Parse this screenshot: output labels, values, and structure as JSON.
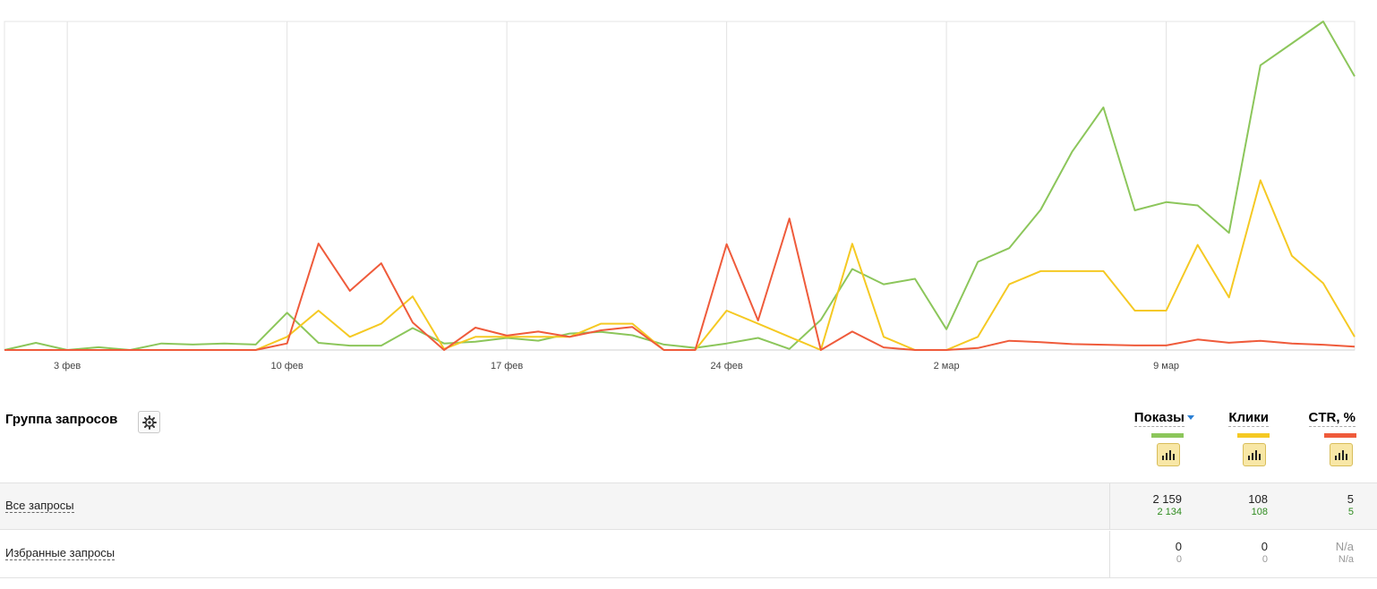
{
  "chart_data": {
    "type": "line",
    "x_tick_labels": [
      "3 фев",
      "10 фев",
      "17 фев",
      "24 фев",
      "2 мар",
      "9 мар"
    ],
    "x_tick_days": [
      3,
      10,
      17,
      24,
      31,
      38
    ],
    "x_range": [
      1,
      44
    ],
    "grid": true,
    "series": [
      {
        "name": "Показы",
        "color": "#8cc65b",
        "y_range": [
          0,
          60
        ],
        "values": [
          0,
          1.3,
          0,
          0.5,
          0,
          1.2,
          1,
          1.2,
          1,
          6.8,
          1.3,
          0.8,
          0.8,
          4,
          1.2,
          1.5,
          2.2,
          1.7,
          3,
          3.3,
          2.7,
          1,
          0.4,
          1.2,
          2.2,
          0.2,
          5.5,
          14.8,
          12,
          13,
          3.8,
          16.1,
          18.6,
          25.6,
          36.2,
          44.3,
          25.5,
          27,
          26.4,
          21.4,
          52,
          56,
          60,
          50
        ]
      },
      {
        "name": "Клики",
        "color": "#f5c923",
        "y_range": [
          0,
          30
        ],
        "values": [
          0,
          0,
          0,
          0,
          0,
          0,
          0,
          0,
          0,
          1.2,
          3.6,
          1.2,
          2.4,
          4.9,
          0.1,
          1.2,
          1.2,
          1.2,
          1.2,
          2.4,
          2.4,
          0,
          0,
          3.6,
          2.4,
          1.2,
          0,
          9.7,
          1.2,
          0,
          0,
          1.2,
          6,
          7.2,
          7.2,
          7.2,
          3.6,
          3.6,
          9.6,
          4.8,
          15.5,
          8.6,
          6.1,
          1.2
        ]
      },
      {
        "name": "CTR, %",
        "color": "#ef5b3b",
        "y_range": [
          0,
          50
        ],
        "values": [
          0,
          0,
          0,
          0,
          0,
          0,
          0,
          0,
          0,
          1,
          16.2,
          9,
          13.2,
          4.2,
          0,
          3.4,
          2.2,
          2.8,
          2,
          3,
          3.5,
          0,
          0,
          16.1,
          4.5,
          20,
          0,
          2.8,
          0.4,
          0,
          0,
          0.3,
          1.4,
          1.2,
          0.9,
          0.8,
          0.7,
          0.7,
          1.6,
          1.1,
          1.4,
          1,
          0.8,
          0.5
        ]
      }
    ]
  },
  "table": {
    "group_title": "Группа запросов",
    "settings_icon": "gear-icon",
    "columns": [
      {
        "label": "Показы",
        "color": "#8cc65b",
        "sorted": true
      },
      {
        "label": "Клики",
        "color": "#f5c923",
        "sorted": false
      },
      {
        "label": "CTR, %",
        "color": "#ef5b3b",
        "sorted": false
      }
    ],
    "rows": [
      {
        "name": "Все запросы",
        "impressions": "2 159",
        "impressions_sub": "2 134",
        "clicks": "108",
        "clicks_sub": "108",
        "ctr": "5",
        "ctr_sub": "5"
      },
      {
        "name": "Избранные запросы",
        "impressions": "0",
        "impressions_sub": "0",
        "clicks": "0",
        "clicks_sub": "0",
        "ctr": "N/a",
        "ctr_sub": "N/a"
      }
    ]
  }
}
